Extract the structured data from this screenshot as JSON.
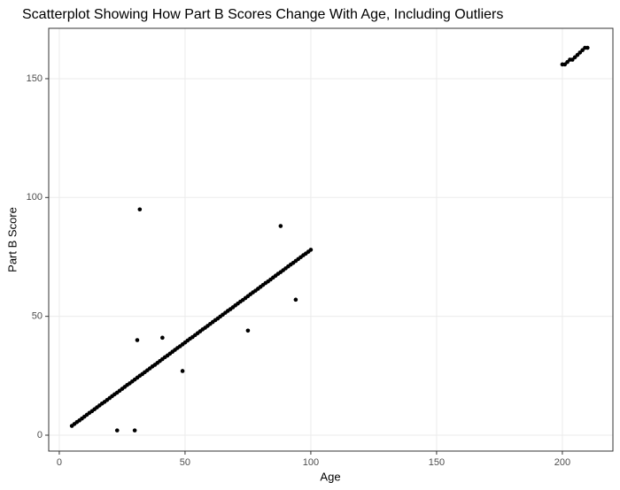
{
  "chart_data": {
    "type": "scatter",
    "title": "Scatterplot Showing How Part B Scores Change With Age, Including Outliers",
    "x_label": "Age",
    "y_label": "Part B Score",
    "x": [
      5,
      6,
      7,
      8,
      9,
      10,
      11,
      12,
      13,
      14,
      15,
      16,
      17,
      18,
      19,
      20,
      21,
      22,
      23,
      24,
      25,
      26,
      27,
      28,
      29,
      30,
      31,
      32,
      33,
      34,
      35,
      36,
      37,
      38,
      39,
      40,
      41,
      42,
      43,
      44,
      45,
      46,
      47,
      48,
      49,
      50,
      51,
      52,
      53,
      54,
      55,
      56,
      57,
      58,
      59,
      60,
      61,
      62,
      63,
      64,
      65,
      66,
      67,
      68,
      69,
      70,
      71,
      72,
      73,
      74,
      75,
      76,
      77,
      78,
      79,
      80,
      81,
      82,
      83,
      84,
      85,
      86,
      87,
      88,
      89,
      90,
      91,
      92,
      93,
      94,
      95,
      96,
      97,
      98,
      99,
      100,
      200,
      201,
      202,
      203,
      204,
      205,
      206,
      207,
      208,
      209,
      210,
      23,
      30,
      31,
      32,
      41,
      49,
      75,
      88,
      94
    ],
    "values": [
      3.9,
      4.7,
      5.5,
      6.2,
      7.0,
      7.8,
      8.6,
      9.4,
      10.1,
      10.9,
      11.7,
      12.5,
      13.3,
      14.0,
      14.8,
      15.6,
      16.4,
      17.2,
      17.9,
      18.7,
      19.5,
      20.3,
      21.1,
      21.8,
      22.6,
      23.4,
      24.2,
      25.0,
      25.7,
      26.5,
      27.3,
      28.1,
      28.9,
      29.6,
      30.4,
      31.2,
      32.0,
      32.8,
      33.5,
      34.3,
      35.1,
      35.9,
      36.7,
      37.4,
      38.2,
      39.0,
      39.8,
      40.6,
      41.3,
      42.1,
      42.9,
      43.7,
      44.5,
      45.2,
      46.0,
      46.8,
      47.6,
      48.4,
      49.1,
      49.9,
      50.7,
      51.5,
      52.3,
      53.0,
      53.8,
      54.6,
      55.4,
      56.2,
      56.9,
      57.7,
      58.5,
      59.3,
      60.1,
      60.8,
      61.6,
      62.4,
      63.2,
      64.0,
      64.7,
      65.5,
      66.3,
      67.1,
      67.9,
      68.6,
      69.4,
      70.2,
      71.0,
      71.8,
      72.5,
      73.3,
      74.1,
      74.9,
      75.7,
      76.4,
      77.2,
      78.0,
      156,
      156,
      157,
      158,
      158,
      159,
      160,
      161,
      162,
      163,
      163,
      2,
      2,
      40,
      95,
      41,
      27,
      44,
      88,
      57
    ],
    "color": "#000000",
    "xlim": [
      -4.2,
      220.1
    ],
    "xticks": [
      0,
      50,
      100,
      150,
      200
    ],
    "ylim": [
      -6.7,
      171.2
    ],
    "yticks": [
      0,
      50,
      100,
      150
    ],
    "grid": true
  }
}
